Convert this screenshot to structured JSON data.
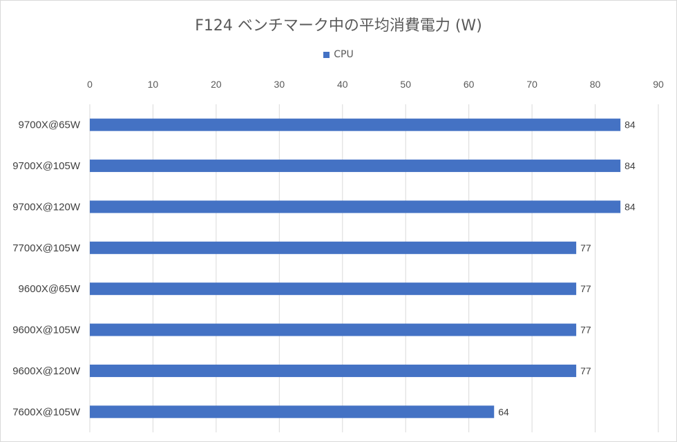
{
  "chart_data": {
    "type": "bar",
    "orientation": "horizontal",
    "title": "F124 ベンチマーク中の平均消費電力 (W)",
    "legend_position": "top",
    "categories": [
      "9700X@65W",
      "9700X@105W",
      "9700X@120W",
      "7700X@105W",
      "9600X@65W",
      "9600X@105W",
      "9600X@120W",
      "7600X@105W"
    ],
    "series": [
      {
        "name": "CPU",
        "color": "#4472c4",
        "values": [
          84,
          84,
          84,
          77,
          77,
          77,
          77,
          64
        ]
      }
    ],
    "xlim": [
      0,
      90
    ],
    "x_ticks": [
      0,
      10,
      20,
      30,
      40,
      50,
      60,
      70,
      80,
      90
    ],
    "x_axis_position": "top",
    "grid": true,
    "grid_color": "#d9d9d9",
    "data_labels": true
  }
}
